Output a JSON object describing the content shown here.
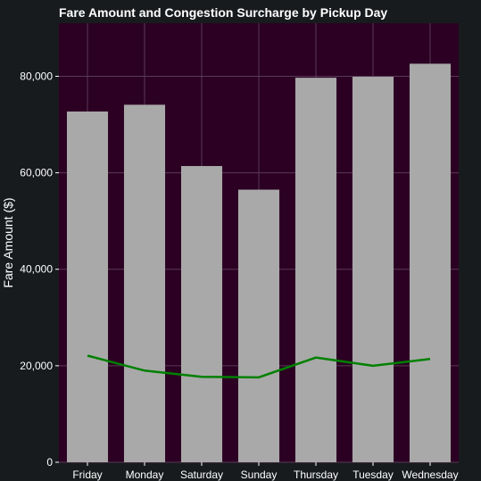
{
  "chart_data": {
    "type": "bar",
    "title": "Fare Amount and Congestion Surcharge by Pickup Day",
    "xlabel": "",
    "ylabel": "Fare Amount ($)",
    "categories": [
      "Friday",
      "Monday",
      "Saturday",
      "Sunday",
      "Thursday",
      "Tuesday",
      "Wednesday"
    ],
    "series": [
      {
        "type": "bar",
        "values": [
          72700,
          74100,
          61400,
          56500,
          79700,
          79900,
          82600
        ]
      },
      {
        "type": "line",
        "values": [
          22100,
          19000,
          17700,
          17600,
          21700,
          20000,
          21400
        ]
      }
    ],
    "yticks": [
      0,
      20000,
      40000,
      60000,
      80000
    ],
    "ytick_labels": [
      "0",
      "20,000",
      "40,000",
      "60,000",
      "80,000"
    ],
    "ylim": [
      0,
      91000
    ],
    "grid": true,
    "colors": {
      "background": "#181b1e",
      "plot_background": "#2b0022",
      "bar": "#a9a9a9",
      "line": "#008000",
      "grid": "#5a3a55",
      "text": "#ffffff"
    }
  }
}
